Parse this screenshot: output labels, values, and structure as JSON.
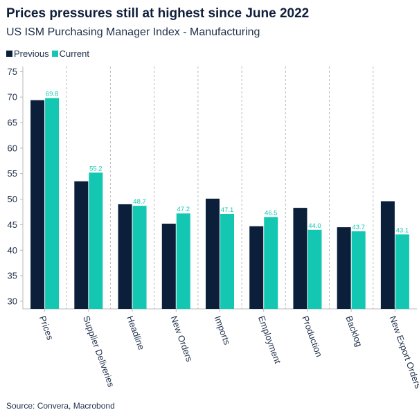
{
  "title": "Prices pressures still at highest since June 2022",
  "subtitle": "US ISM Purchasing Manager Index - Manufacturing",
  "source": "Source: Convera, Macrobond",
  "colors": {
    "previous": "#0b1f3a",
    "current": "#14c7b2",
    "grid": "#b9b9b9"
  },
  "chart_data": {
    "type": "bar",
    "title": "Prices pressures still at highest since June 2022",
    "subtitle": "US ISM Purchasing Manager Index - Manufacturing",
    "xlabel": "",
    "ylabel": "",
    "ylim": [
      28.5,
      76
    ],
    "yticks": [
      30,
      35,
      40,
      45,
      50,
      55,
      60,
      65,
      70,
      75
    ],
    "legend_position": "top-left",
    "categories": [
      "Prices",
      "Supplier Deliveries",
      "Headline",
      "New Orders",
      "Imports",
      "Employment",
      "Production",
      "Backlog",
      "New Export Orders"
    ],
    "series": [
      {
        "name": "Previous",
        "values": [
          69.4,
          53.5,
          49.0,
          45.2,
          50.1,
          44.7,
          48.3,
          44.5,
          49.6
        ]
      },
      {
        "name": "Current",
        "values": [
          69.8,
          55.2,
          48.7,
          47.2,
          47.1,
          46.5,
          44.0,
          43.7,
          43.1
        ]
      }
    ],
    "data_labels": [
      "69.8",
      "55.2",
      "48.7",
      "47.2",
      "47.1",
      "46.5",
      "44.0",
      "43.7",
      "43.1"
    ]
  }
}
